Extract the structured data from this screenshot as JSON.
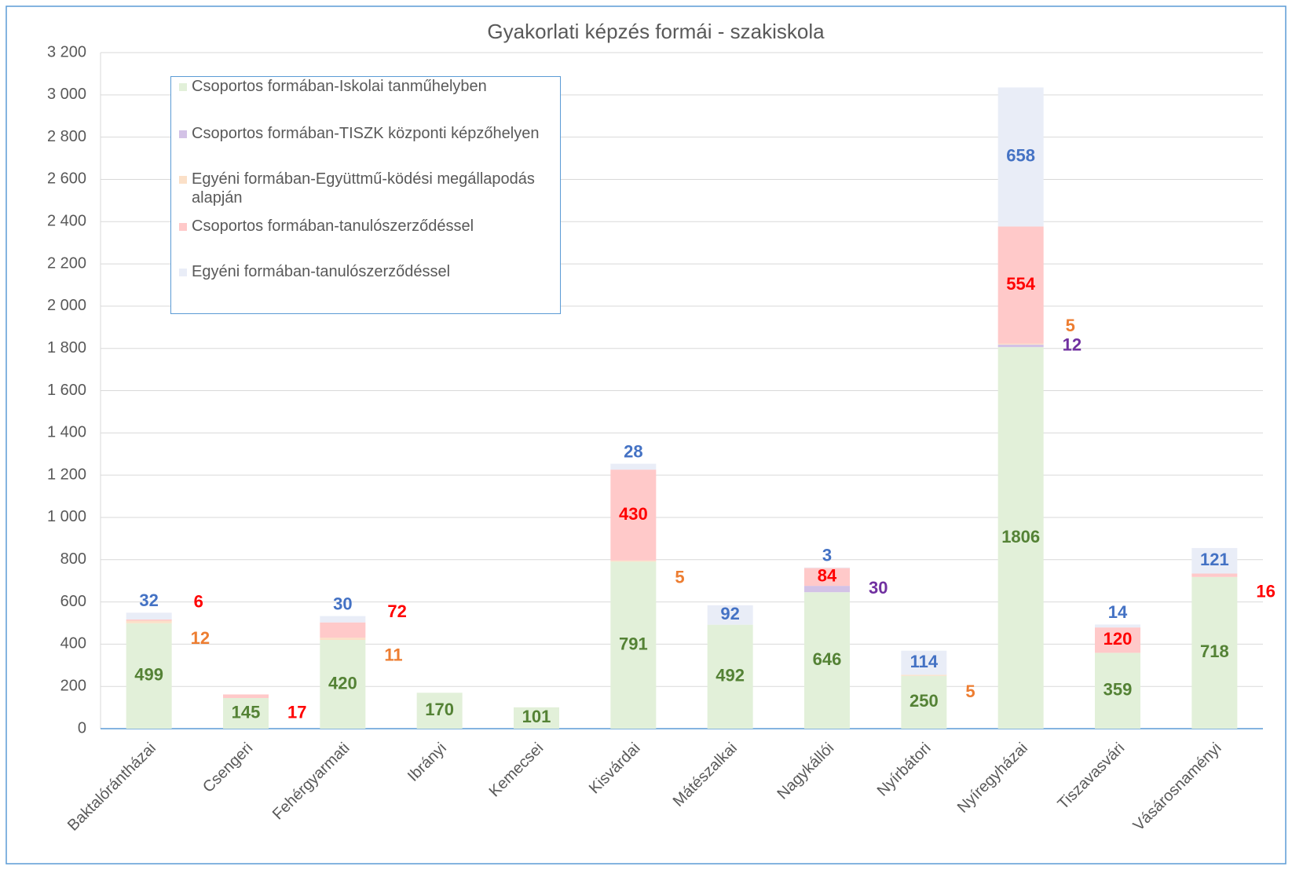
{
  "chart_data": {
    "type": "stacked_bar",
    "title": "Gyakorlati képzés formái - szakiskola",
    "categories": [
      "Baktalórántházai",
      "Csengeri",
      "Fehérgyarmati",
      "Ibrányi",
      "Kemecsei",
      "Kisvárdai",
      "Mátészalkai",
      "Nagykállói",
      "Nyírbátori",
      "Nyíregyházai",
      "Tiszavasvári",
      "Vásárosnaményi"
    ],
    "series": [
      {
        "name": "Csoportos formában-Iskolai tanműhelyben",
        "color": "#e2f0d9",
        "label_color": "#548235",
        "values": [
          499,
          145,
          420,
          170,
          101,
          791,
          492,
          646,
          250,
          1806,
          359,
          718
        ]
      },
      {
        "name": "Csoportos formában-TISZK központi képzőhelyen",
        "color": "#d3c2e6",
        "label_color": "#7030a0",
        "values": [
          null,
          null,
          null,
          null,
          null,
          null,
          null,
          30,
          null,
          12,
          null,
          null
        ]
      },
      {
        "name": "Egyéni formában-Együttmű-ködési megállapodás alapján",
        "color": "#fbe0c8",
        "label_color": "#ed7d31",
        "values": [
          12,
          null,
          11,
          null,
          null,
          5,
          null,
          null,
          5,
          5,
          null,
          null
        ]
      },
      {
        "name": "Csoportos formában-tanulószerződéssel",
        "color": "#ffc9c9",
        "label_color": "#ff0000",
        "values": [
          6,
          17,
          72,
          null,
          null,
          430,
          null,
          84,
          null,
          554,
          120,
          16
        ]
      },
      {
        "name": "Egyéni formában-tanulószerződéssel",
        "color": "#e9edf7",
        "label_color": "#4472c4",
        "values": [
          32,
          null,
          30,
          null,
          null,
          28,
          92,
          3,
          114,
          658,
          14,
          121
        ]
      }
    ],
    "ylim": [
      0,
      3200
    ],
    "yticks": [
      0,
      200,
      400,
      600,
      800,
      {
        "value": 1000,
        "label": "1 000"
      },
      {
        "value": 1200,
        "label": "1 200"
      },
      {
        "value": 1400,
        "label": "1 400"
      },
      {
        "value": 1600,
        "label": "1 600"
      },
      {
        "value": 1800,
        "label": "1 800"
      },
      {
        "value": 2000,
        "label": "2 000"
      },
      {
        "value": 2200,
        "label": "2 200"
      },
      {
        "value": 2400,
        "label": "2 400"
      },
      {
        "value": 2600,
        "label": "2 600"
      },
      {
        "value": 2800,
        "label": "2 800"
      },
      {
        "value": 3000,
        "label": "3 000"
      },
      {
        "value": 3200,
        "label": "3 200"
      }
    ],
    "grid": true
  }
}
